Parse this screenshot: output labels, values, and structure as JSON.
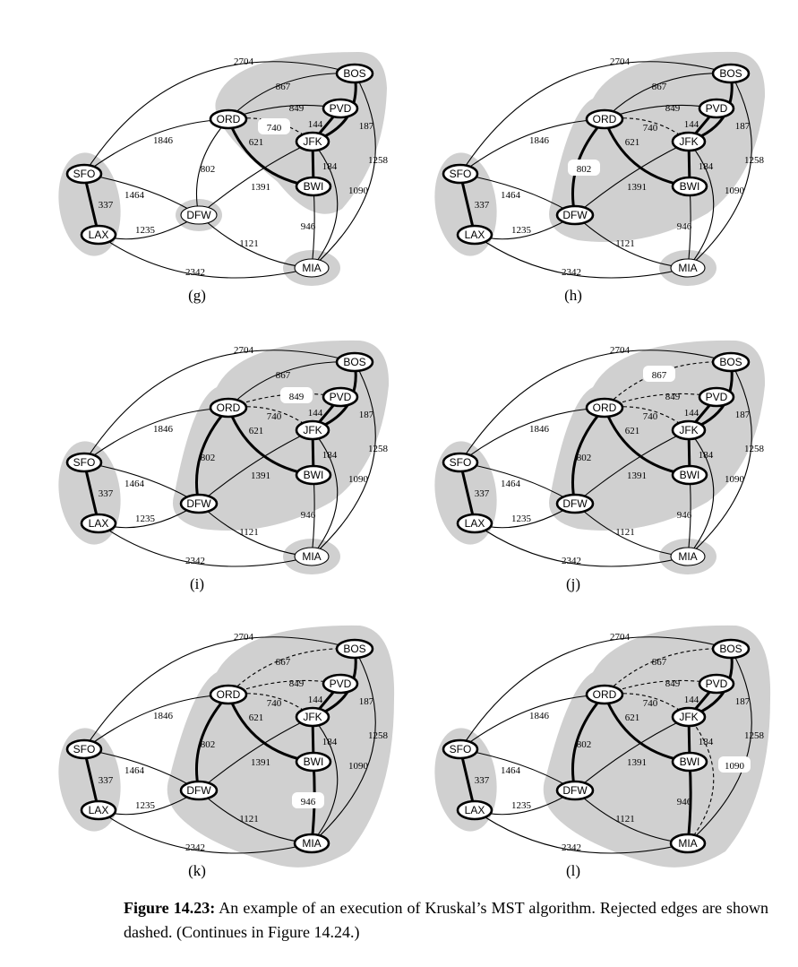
{
  "graph": {
    "nodes": [
      {
        "id": "SFO",
        "label": "SFO"
      },
      {
        "id": "LAX",
        "label": "LAX"
      },
      {
        "id": "ORD",
        "label": "ORD"
      },
      {
        "id": "DFW",
        "label": "DFW"
      },
      {
        "id": "BOS",
        "label": "BOS"
      },
      {
        "id": "PVD",
        "label": "PVD"
      },
      {
        "id": "JFK",
        "label": "JFK"
      },
      {
        "id": "BWI",
        "label": "BWI"
      },
      {
        "id": "MIA",
        "label": "MIA"
      }
    ],
    "edges": [
      {
        "id": "SFO-BOS",
        "from": "SFO",
        "to": "BOS",
        "weight": "2704"
      },
      {
        "id": "SFO-ORD",
        "from": "SFO",
        "to": "ORD",
        "weight": "1846"
      },
      {
        "id": "SFO-DFW",
        "from": "SFO",
        "to": "DFW",
        "weight": "1464"
      },
      {
        "id": "SFO-LAX",
        "from": "SFO",
        "to": "LAX",
        "weight": "337"
      },
      {
        "id": "LAX-DFW",
        "from": "LAX",
        "to": "DFW",
        "weight": "1235"
      },
      {
        "id": "LAX-MIA",
        "from": "LAX",
        "to": "MIA",
        "weight": "2342"
      },
      {
        "id": "ORD-BOS",
        "from": "ORD",
        "to": "BOS",
        "weight": "867"
      },
      {
        "id": "ORD-PVD",
        "from": "ORD",
        "to": "PVD",
        "weight": "849"
      },
      {
        "id": "ORD-JFK",
        "from": "ORD",
        "to": "JFK",
        "weight": "740"
      },
      {
        "id": "ORD-BWI",
        "from": "ORD",
        "to": "BWI",
        "weight": "621"
      },
      {
        "id": "ORD-DFW",
        "from": "ORD",
        "to": "DFW",
        "weight": "802"
      },
      {
        "id": "PVD-JFK",
        "from": "PVD",
        "to": "JFK",
        "weight": "144"
      },
      {
        "id": "BOS-JFK",
        "from": "BOS",
        "to": "JFK",
        "weight": "187"
      },
      {
        "id": "BOS-MIA",
        "from": "BOS",
        "to": "MIA",
        "weight": "1258"
      },
      {
        "id": "JFK-BWI",
        "from": "JFK",
        "to": "BWI",
        "weight": "184"
      },
      {
        "id": "JFK-DFW",
        "from": "JFK",
        "to": "DFW",
        "weight": "1391"
      },
      {
        "id": "JFK-MIA",
        "from": "JFK",
        "to": "MIA",
        "weight": "1090"
      },
      {
        "id": "BWI-MIA",
        "from": "BWI",
        "to": "MIA",
        "weight": "946"
      },
      {
        "id": "DFW-MIA",
        "from": "DFW",
        "to": "MIA",
        "weight": "1121"
      }
    ]
  },
  "panels": [
    {
      "label": "(g)",
      "tree_edges": [
        "SFO-LAX",
        "PVD-JFK",
        "BOS-JFK",
        "JFK-BWI",
        "ORD-BWI"
      ],
      "rejected_edges": [
        "ORD-JFK"
      ],
      "highlight_edge": "ORD-JFK",
      "clusters": [
        "SFO-LAX",
        "EAST5",
        "DFW",
        "MIA"
      ]
    },
    {
      "label": "(h)",
      "tree_edges": [
        "SFO-LAX",
        "PVD-JFK",
        "BOS-JFK",
        "JFK-BWI",
        "ORD-BWI",
        "ORD-DFW"
      ],
      "rejected_edges": [
        "ORD-JFK"
      ],
      "highlight_edge": "ORD-DFW",
      "clusters": [
        "SFO-LAX",
        "EAST6",
        "MIA"
      ]
    },
    {
      "label": "(i)",
      "tree_edges": [
        "SFO-LAX",
        "PVD-JFK",
        "BOS-JFK",
        "JFK-BWI",
        "ORD-BWI",
        "ORD-DFW"
      ],
      "rejected_edges": [
        "ORD-JFK",
        "ORD-PVD"
      ],
      "highlight_edge": "ORD-PVD",
      "clusters": [
        "SFO-LAX",
        "EAST6",
        "MIA"
      ]
    },
    {
      "label": "(j)",
      "tree_edges": [
        "SFO-LAX",
        "PVD-JFK",
        "BOS-JFK",
        "JFK-BWI",
        "ORD-BWI",
        "ORD-DFW"
      ],
      "rejected_edges": [
        "ORD-JFK",
        "ORD-PVD",
        "ORD-BOS"
      ],
      "highlight_edge": "ORD-BOS",
      "clusters": [
        "SFO-LAX",
        "EAST6",
        "MIA"
      ]
    },
    {
      "label": "(k)",
      "tree_edges": [
        "SFO-LAX",
        "PVD-JFK",
        "BOS-JFK",
        "JFK-BWI",
        "ORD-BWI",
        "ORD-DFW",
        "BWI-MIA"
      ],
      "rejected_edges": [
        "ORD-JFK",
        "ORD-PVD",
        "ORD-BOS"
      ],
      "highlight_edge": "BWI-MIA",
      "clusters": [
        "SFO-LAX",
        "EAST7"
      ]
    },
    {
      "label": "(l)",
      "tree_edges": [
        "SFO-LAX",
        "PVD-JFK",
        "BOS-JFK",
        "JFK-BWI",
        "ORD-BWI",
        "ORD-DFW",
        "BWI-MIA"
      ],
      "rejected_edges": [
        "ORD-JFK",
        "ORD-PVD",
        "ORD-BOS",
        "JFK-MIA"
      ],
      "highlight_edge": "JFK-MIA",
      "clusters": [
        "SFO-LAX",
        "EAST7"
      ]
    }
  ],
  "caption": {
    "figure_label": "Figure 14.23:",
    "text": " An example of an execution of Kruskal’s MST algorithm. Rejected edges are shown dashed. (Continues in Figure 14.24.)"
  },
  "colors": {
    "cluster_fill": "#d0d0d0",
    "edge": "#000000",
    "node_fill": "#ffffff"
  }
}
